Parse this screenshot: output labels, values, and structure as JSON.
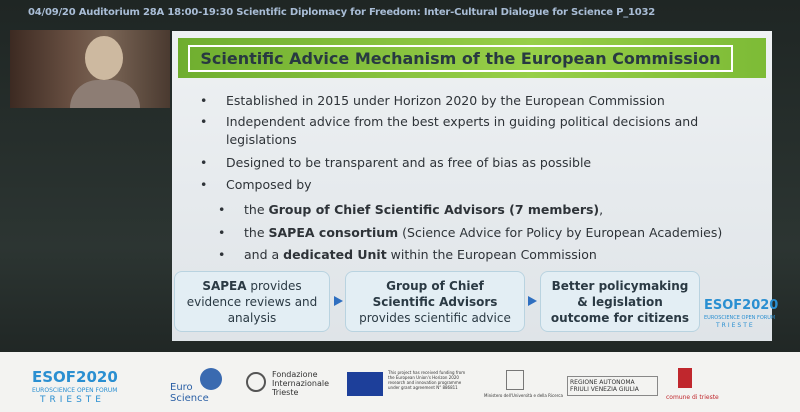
{
  "header": {
    "text": "04/09/20 Auditorium 28A 18:00-19:30 Scientific Diplomacy for Freedom: Inter-Cultural Dialogue for Science P_1032"
  },
  "slide": {
    "title": "Scientific Advice Mechanism of the European Commission",
    "bullets": [
      "Established in 2015 under  Horizon 2020 by the European Commission",
      "Independent advice from the best experts in guiding political decisions and legislations",
      "Designed to be transparent and as free of bias as possible",
      "Composed by"
    ],
    "sub_bullets": [
      {
        "before": "the ",
        "bold": "Group of Chief Scientific Advisors (7 members)",
        "after": ","
      },
      {
        "before": "the ",
        "bold": "SAPEA consortium",
        "after": " (Science Advice for Policy by European Academies)"
      },
      {
        "before": "and a ",
        "bold": "dedicated Unit",
        "after": " within the European Commission"
      }
    ],
    "flow": [
      {
        "bold": "SAPEA",
        "after": " provides evidence reviews and analysis"
      },
      {
        "bold": "Group of Chief Scientific Advisors",
        "after": " provides scientific advice"
      },
      {
        "bold": "Better policymaking & legislation outcome for citizens"
      }
    ],
    "logo": {
      "name": "ESOF2020",
      "line1": "EUROSCIENCE OPEN FORUM",
      "line2": "TRIESTE"
    }
  },
  "footer": {
    "esof": {
      "name": "ESOF2020",
      "line1": "EUROSCIENCE OPEN FORUM",
      "line2": "TRIESTE"
    },
    "euroscience": "Euro Science",
    "fondazione": "Fondazione Internazionale Trieste",
    "eu": "This project has received funding from the European Union's Horizon 2020 research and innovation programme under grant agreement N° 886811",
    "ministero": "Ministero dell'Università e della Ricerca",
    "regione": "REGIONE AUTONOMA FRIULI VENEZIA GIULIA",
    "comune": "comune di trieste"
  }
}
